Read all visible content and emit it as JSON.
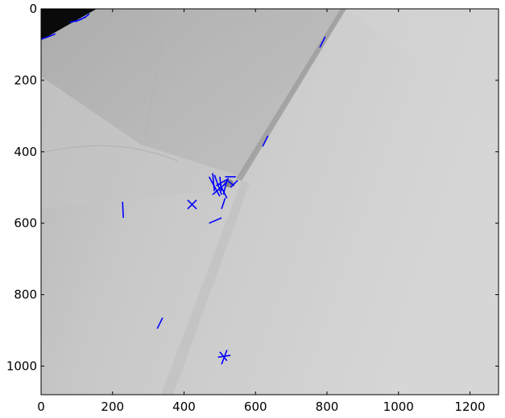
{
  "chart_data": {
    "type": "scatter",
    "title": "",
    "xlabel": "",
    "ylabel": "",
    "xlim": [
      0,
      1280
    ],
    "ylim": [
      1080,
      0
    ],
    "y_axis_inverted": true,
    "grid": false,
    "legend": "none",
    "background": "grayscale microscopy image",
    "x_ticks": [
      0,
      200,
      400,
      600,
      800,
      1000,
      1200
    ],
    "y_ticks": [
      0,
      200,
      400,
      600,
      800,
      1000
    ],
    "marker_color": "#0000ff",
    "series": [
      {
        "segments": [
          [
            [
              0,
              85
            ],
            [
              20,
              78
            ]
          ],
          [
            [
              20,
              78
            ],
            [
              40,
              70
            ]
          ],
          [
            [
              80,
              38
            ],
            [
              100,
              33
            ]
          ],
          [
            [
              95,
              36
            ],
            [
              115,
              28
            ]
          ],
          [
            [
              105,
              32
            ],
            [
              125,
              22
            ]
          ],
          [
            [
              120,
              26
            ],
            [
              135,
              14
            ]
          ],
          [
            [
              780,
              108
            ],
            [
              795,
              78
            ]
          ],
          [
            [
              620,
              385
            ],
            [
              635,
              355
            ]
          ],
          [
            [
              228,
              540
            ],
            [
              230,
              585
            ]
          ],
          [
            [
              410,
              535
            ],
            [
              435,
              560
            ]
          ],
          [
            [
              410,
              560
            ],
            [
              435,
              535
            ]
          ],
          [
            [
              470,
              600
            ],
            [
              505,
              585
            ]
          ],
          [
            [
              480,
              460
            ],
            [
              485,
              510
            ]
          ],
          [
            [
              470,
              470
            ],
            [
              500,
              525
            ]
          ],
          [
            [
              485,
              465
            ],
            [
              505,
              520
            ]
          ],
          [
            [
              500,
              470
            ],
            [
              505,
              510
            ]
          ],
          [
            [
              480,
              520
            ],
            [
              520,
              485
            ]
          ],
          [
            [
              490,
              495
            ],
            [
              525,
              475
            ]
          ],
          [
            [
              500,
              490
            ],
            [
              520,
              530
            ]
          ],
          [
            [
              510,
              520
            ],
            [
              520,
              480
            ]
          ],
          [
            [
              515,
              470
            ],
            [
              545,
              470
            ]
          ],
          [
            [
              520,
              480
            ],
            [
              540,
              495
            ]
          ],
          [
            [
              530,
              500
            ],
            [
              550,
              480
            ]
          ],
          [
            [
              505,
              560
            ],
            [
              515,
              530
            ]
          ],
          [
            [
              325,
              895
            ],
            [
              340,
              865
            ]
          ],
          [
            [
              495,
              975
            ],
            [
              530,
              970
            ]
          ],
          [
            [
              505,
              995
            ],
            [
              520,
              955
            ]
          ],
          [
            [
              500,
              960
            ],
            [
              520,
              985
            ]
          ]
        ]
      }
    ]
  }
}
